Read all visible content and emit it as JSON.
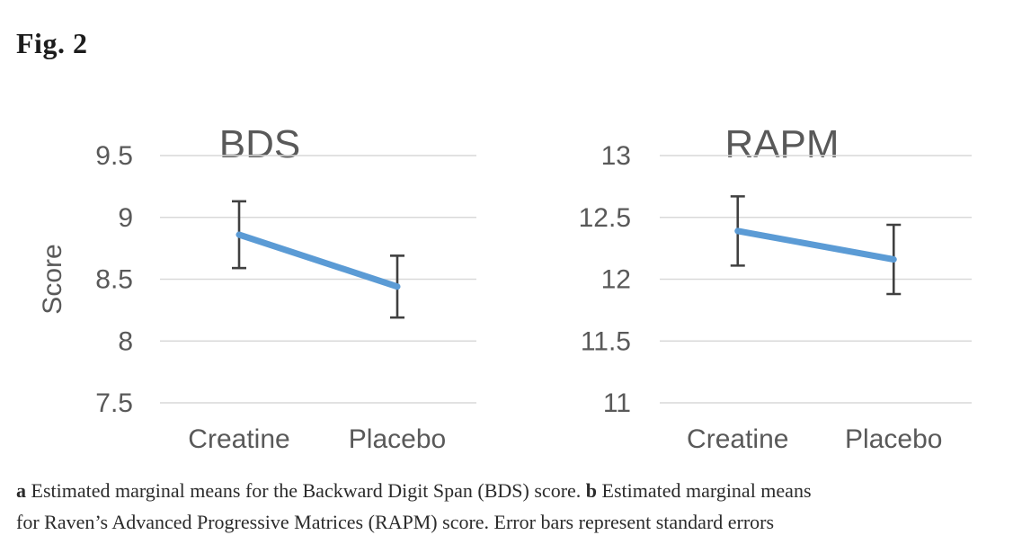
{
  "figure": {
    "label": "Fig. 2"
  },
  "caption": {
    "lines": [
      {
        "segments": [
          {
            "text": "a",
            "bold": true
          },
          {
            "text": " Estimated marginal means for the Backward Digit Span (BDS) score. ",
            "bold": false
          },
          {
            "text": "b",
            "bold": true
          },
          {
            "text": " Estimated marginal means",
            "bold": false
          }
        ]
      },
      {
        "segments": [
          {
            "text": "for Raven’s Advanced Progressive Matrices (RAPM) score. Error bars represent standard errors",
            "bold": false
          }
        ]
      }
    ]
  },
  "chart_style": {
    "line_color": "#5B9BD5",
    "error_bar_color": "#404040",
    "grid_color": "#D9D9D9",
    "text_color": "#595959"
  },
  "chart_data": [
    {
      "type": "line",
      "title": "BDS",
      "ylabel": "Score",
      "xlabel": "",
      "categories": [
        "Creatine",
        "Placebo"
      ],
      "series": [
        {
          "name": "Estimated marginal mean",
          "values": [
            8.86,
            8.44
          ],
          "errors": [
            0.27,
            0.25
          ]
        }
      ],
      "ylim": [
        7.5,
        9.5
      ],
      "yticks": [
        9.5,
        9,
        8.5,
        8,
        7.5
      ],
      "grid": true,
      "legend": "none"
    },
    {
      "type": "line",
      "title": "RAPM",
      "ylabel": "",
      "xlabel": "",
      "categories": [
        "Creatine",
        "Placebo"
      ],
      "series": [
        {
          "name": "Estimated marginal mean",
          "values": [
            12.39,
            12.16
          ],
          "errors": [
            0.28,
            0.28
          ]
        }
      ],
      "ylim": [
        11,
        13
      ],
      "yticks": [
        13,
        12.5,
        12,
        11.5,
        11
      ],
      "grid": true,
      "legend": "none"
    }
  ]
}
